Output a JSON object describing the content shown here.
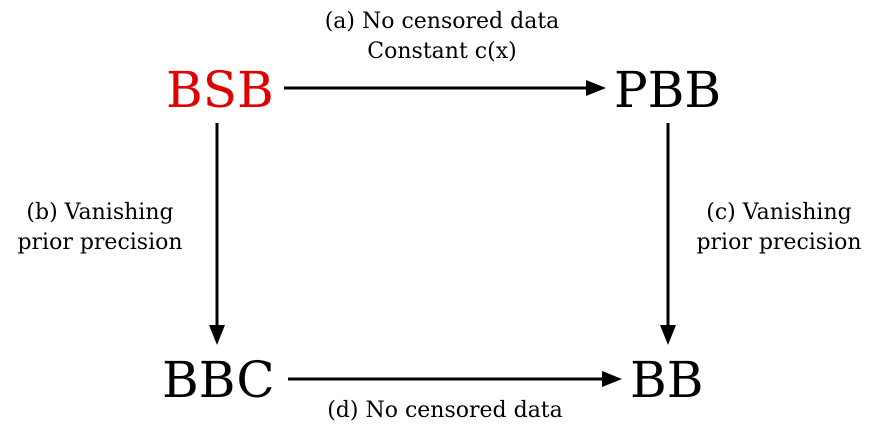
{
  "nodes": {
    "top_left": {
      "label": "BSB",
      "color": "#e00000"
    },
    "top_right": {
      "label": "PBB",
      "color": "#000000"
    },
    "bottom_left": {
      "label": "BBC",
      "color": "#000000"
    },
    "bottom_right": {
      "label": "BB",
      "color": "#000000"
    }
  },
  "edges": {
    "a": {
      "line1": "(a) No censored data",
      "line2": "Constant c(x)"
    },
    "b": {
      "line1": "(b) Vanishing",
      "line2": "prior precision"
    },
    "c": {
      "line1": "(c) Vanishing",
      "line2": "prior precision"
    },
    "d": {
      "line1": "(d) No censored data"
    }
  }
}
